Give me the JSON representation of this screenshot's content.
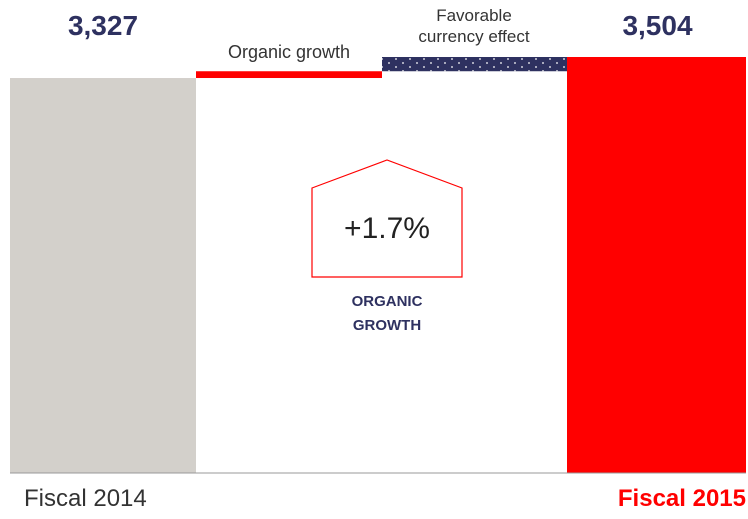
{
  "chart_data": {
    "type": "waterfall",
    "categories": [
      "Fiscal 2014",
      "Organic growth",
      "Favorable currency effect",
      "Fiscal 2015"
    ],
    "values": [
      3327,
      57,
      120,
      3504
    ],
    "value_labels": [
      "3,327",
      null,
      null,
      "3,504"
    ],
    "measure": [
      "absolute",
      "relative",
      "relative",
      "total"
    ],
    "colors": [
      "#d3d0cb",
      "#ff0000",
      "#2e3160",
      "#ff0000"
    ],
    "annotation": {
      "value": "+1.7%",
      "label": "ORGANIC GROWTH"
    }
  }
}
